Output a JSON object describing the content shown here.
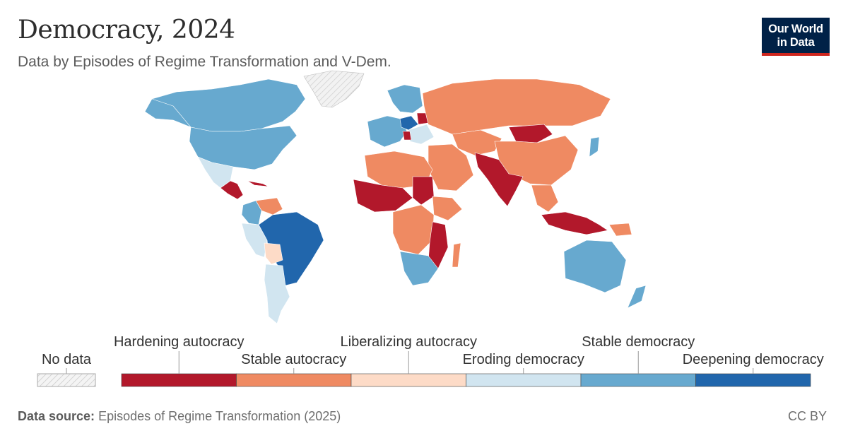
{
  "header": {
    "title": "Democracy, 2024",
    "subtitle": "Data by Episodes of Regime Transformation and V-Dem."
  },
  "logo": {
    "line1": "Our World",
    "line2": "in Data",
    "bg_color": "#002147",
    "accent_color": "#ce261e"
  },
  "legend": {
    "no_data_label": "No data",
    "categories": [
      {
        "label": "Hardening autocracy",
        "color": "#b2182b"
      },
      {
        "label": "Stable autocracy",
        "color": "#ef8a62"
      },
      {
        "label": "Liberalizing autocracy",
        "color": "#fddbc7"
      },
      {
        "label": "Eroding democracy",
        "color": "#d1e5f0"
      },
      {
        "label": "Stable democracy",
        "color": "#67a9cf"
      },
      {
        "label": "Deepening democracy",
        "color": "#2166ac"
      }
    ]
  },
  "footer": {
    "source_label": "Data source:",
    "source_text": "Episodes of Regime Transformation (2025)",
    "license": "CC BY"
  }
}
